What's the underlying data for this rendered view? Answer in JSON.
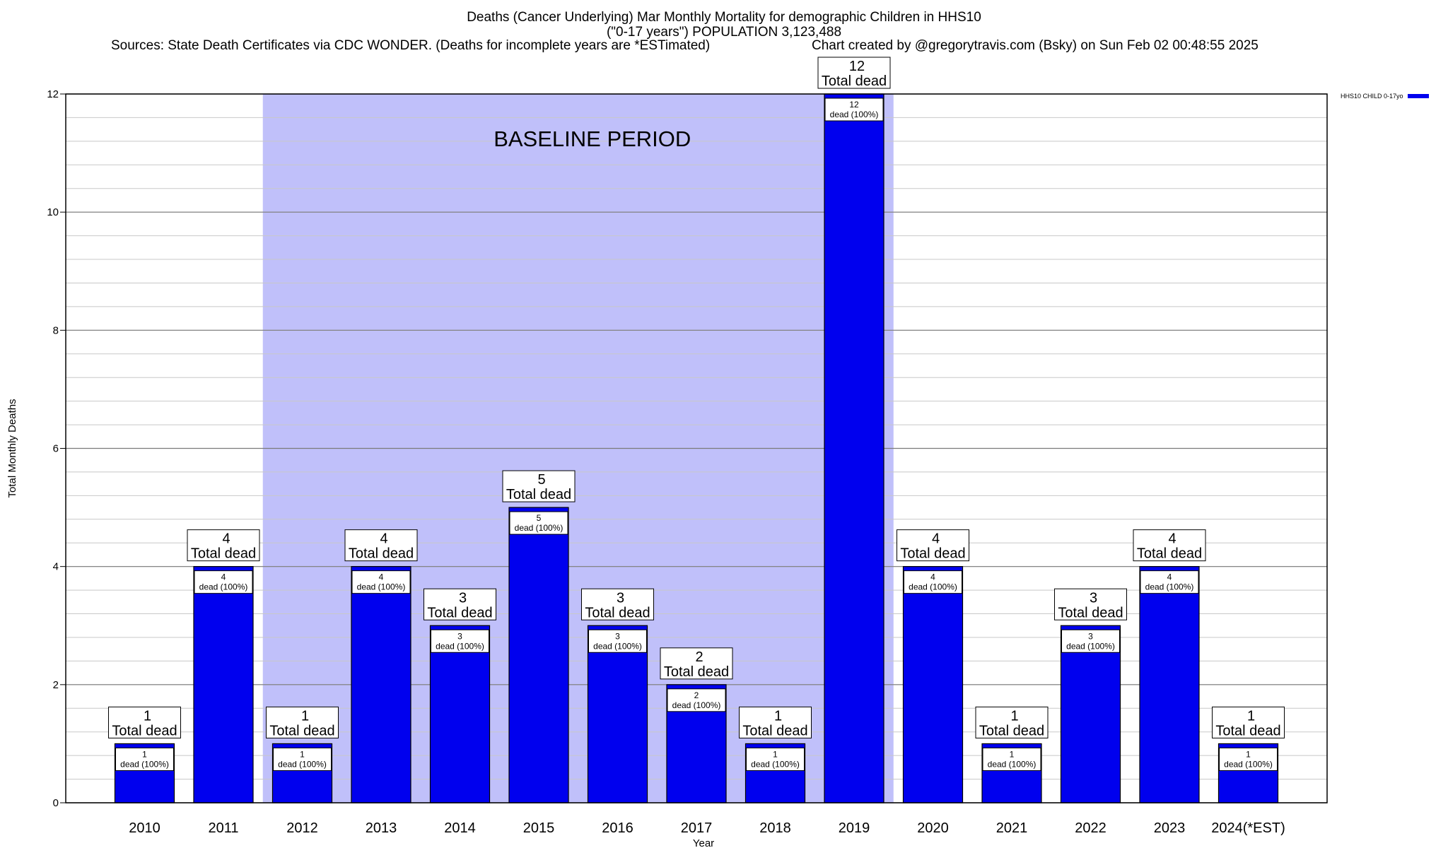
{
  "colors": {
    "bar": "#0000ee",
    "baseline_band": "#c0c0fa",
    "grid": "#c8c8c8",
    "label_box": "#ffffff"
  },
  "header": {
    "line1": "Deaths (Cancer Underlying) Mar Monthly Mortality for demographic Children in HHS10",
    "line2": "(\"0-17 years\") POPULATION 3,123,488",
    "sources": "Sources: State Death Certificates via CDC WONDER. (Deaths for incomplete years are *ESTimated)",
    "credit": "Chart created by @gregorytravis.com (Bsky) on Sun Feb 02 00:48:55 2025"
  },
  "legend": {
    "label": "HHS10 CHILD 0-17yo"
  },
  "chart_data": {
    "type": "bar",
    "title": "Deaths (Cancer Underlying) Mar Monthly Mortality for demographic Children in HHS10",
    "xlabel": "Year",
    "ylabel": "Total Monthly Deaths",
    "ylim": [
      0,
      12
    ],
    "yticks": [
      0,
      2,
      4,
      6,
      8,
      10,
      12
    ],
    "grid": true,
    "legend_position": "top-right",
    "categories": [
      "2010",
      "2011",
      "2012",
      "2013",
      "2014",
      "2015",
      "2016",
      "2017",
      "2018",
      "2019",
      "2020",
      "2021",
      "2022",
      "2023",
      "2024(*EST)"
    ],
    "series": [
      {
        "name": "HHS10 CHILD 0-17yo",
        "values": [
          1,
          4,
          1,
          4,
          3,
          5,
          3,
          2,
          1,
          12,
          4,
          1,
          3,
          4,
          1
        ]
      }
    ],
    "total_label_suffix": "Total dead",
    "inner_label_suffix": "dead (100%)",
    "annotations": [
      {
        "text": "BASELINE PERIOD",
        "x_start": "2012",
        "x_end": "2019"
      }
    ]
  }
}
